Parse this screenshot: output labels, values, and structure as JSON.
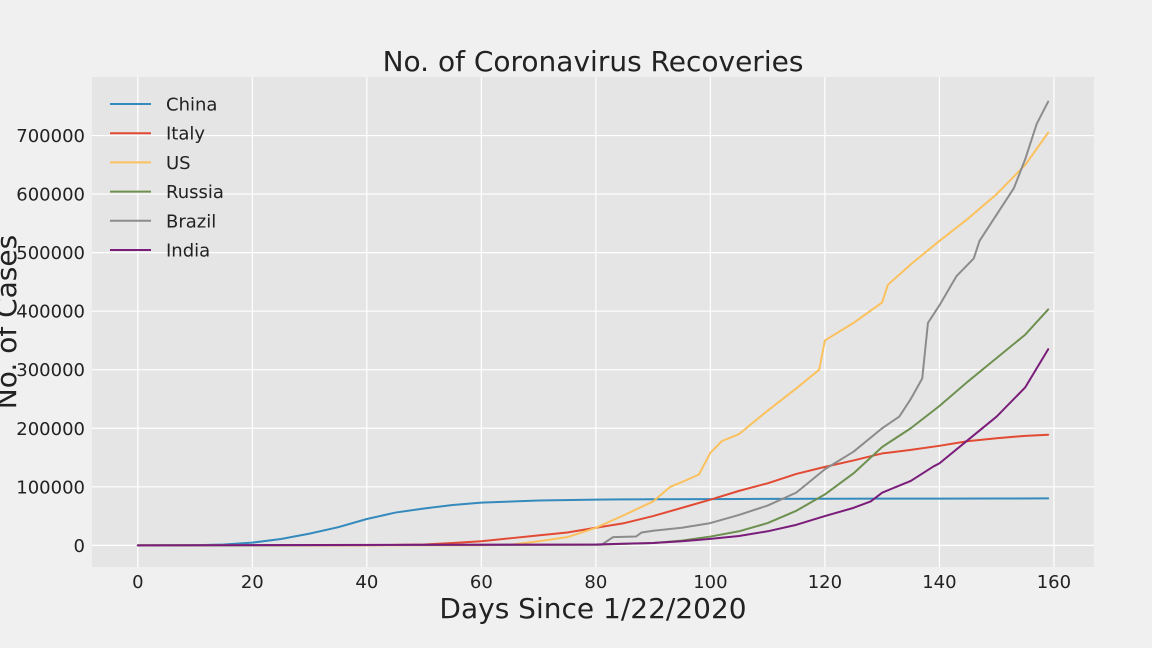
{
  "chart_data": {
    "type": "line",
    "title": "No. of Coronavirus Recoveries",
    "xlabel": "Days Since 1/22/2020",
    "ylabel": "No. of Cases",
    "xlim": [
      -8,
      167
    ],
    "ylim": [
      -37000,
      800000
    ],
    "xticks": [
      0,
      20,
      40,
      60,
      80,
      100,
      120,
      140,
      160
    ],
    "yticks": [
      0,
      100000,
      200000,
      300000,
      400000,
      500000,
      600000,
      700000
    ],
    "grid": true,
    "legend_position": "top-left",
    "series": [
      {
        "name": "China",
        "color": "#348abd",
        "points": [
          [
            0,
            28
          ],
          [
            10,
            250
          ],
          [
            15,
            1500
          ],
          [
            20,
            4600
          ],
          [
            25,
            10800
          ],
          [
            30,
            20000
          ],
          [
            35,
            31000
          ],
          [
            40,
            45000
          ],
          [
            45,
            56000
          ],
          [
            50,
            63000
          ],
          [
            55,
            69000
          ],
          [
            60,
            73000
          ],
          [
            70,
            76500
          ],
          [
            80,
            78000
          ],
          [
            85,
            78500
          ],
          [
            90,
            78700
          ],
          [
            100,
            79000
          ],
          [
            110,
            79300
          ],
          [
            120,
            79500
          ],
          [
            130,
            79700
          ],
          [
            140,
            79800
          ],
          [
            150,
            80000
          ],
          [
            159,
            80200
          ]
        ]
      },
      {
        "name": "Italy",
        "color": "#e24a33",
        "points": [
          [
            0,
            0
          ],
          [
            30,
            0
          ],
          [
            40,
            46
          ],
          [
            50,
            1500
          ],
          [
            55,
            4000
          ],
          [
            60,
            7000
          ],
          [
            65,
            12000
          ],
          [
            70,
            17000
          ],
          [
            75,
            22000
          ],
          [
            80,
            30000
          ],
          [
            85,
            38000
          ],
          [
            90,
            50000
          ],
          [
            95,
            64000
          ],
          [
            100,
            78000
          ],
          [
            105,
            93000
          ],
          [
            110,
            106000
          ],
          [
            115,
            122000
          ],
          [
            120,
            134000
          ],
          [
            125,
            145000
          ],
          [
            130,
            157000
          ],
          [
            135,
            163000
          ],
          [
            140,
            170000
          ],
          [
            145,
            178000
          ],
          [
            150,
            183000
          ],
          [
            155,
            187000
          ],
          [
            159,
            189000
          ]
        ]
      },
      {
        "name": "US",
        "color": "#fbc15e",
        "points": [
          [
            0,
            0
          ],
          [
            60,
            100
          ],
          [
            65,
            1000
          ],
          [
            70,
            7000
          ],
          [
            75,
            14000
          ],
          [
            80,
            30000
          ],
          [
            85,
            52000
          ],
          [
            90,
            75000
          ],
          [
            93,
            100000
          ],
          [
            95,
            108000
          ],
          [
            98,
            121000
          ],
          [
            100,
            158000
          ],
          [
            102,
            178000
          ],
          [
            105,
            190000
          ],
          [
            110,
            230000
          ],
          [
            115,
            268000
          ],
          [
            119,
            300000
          ],
          [
            120,
            350000
          ],
          [
            125,
            380000
          ],
          [
            130,
            415000
          ],
          [
            131,
            445000
          ],
          [
            135,
            480000
          ],
          [
            140,
            520000
          ],
          [
            145,
            558000
          ],
          [
            150,
            600000
          ],
          [
            155,
            650000
          ],
          [
            159,
            705000
          ]
        ]
      },
      {
        "name": "Russia",
        "color": "#6d904f",
        "points": [
          [
            0,
            0
          ],
          [
            80,
            1000
          ],
          [
            90,
            4000
          ],
          [
            95,
            8000
          ],
          [
            100,
            15000
          ],
          [
            105,
            24000
          ],
          [
            110,
            38000
          ],
          [
            115,
            59000
          ],
          [
            120,
            87000
          ],
          [
            125,
            123000
          ],
          [
            130,
            168000
          ],
          [
            135,
            200000
          ],
          [
            140,
            238000
          ],
          [
            145,
            280000
          ],
          [
            150,
            320000
          ],
          [
            155,
            360000
          ],
          [
            159,
            403000
          ]
        ]
      },
      {
        "name": "Brazil",
        "color": "#8c8c8c",
        "points": [
          [
            0,
            0
          ],
          [
            80,
            1000
          ],
          [
            81,
            1000
          ],
          [
            83,
            14000
          ],
          [
            87,
            15000
          ],
          [
            88,
            22000
          ],
          [
            90,
            25000
          ],
          [
            95,
            30000
          ],
          [
            100,
            38000
          ],
          [
            105,
            52000
          ],
          [
            110,
            68000
          ],
          [
            115,
            90000
          ],
          [
            120,
            130000
          ],
          [
            125,
            160000
          ],
          [
            130,
            200000
          ],
          [
            133,
            220000
          ],
          [
            135,
            250000
          ],
          [
            137,
            285000
          ],
          [
            138,
            380000
          ],
          [
            140,
            410000
          ],
          [
            143,
            460000
          ],
          [
            146,
            490000
          ],
          [
            147,
            520000
          ],
          [
            150,
            565000
          ],
          [
            153,
            610000
          ],
          [
            155,
            660000
          ],
          [
            157,
            720000
          ],
          [
            159,
            758000
          ]
        ]
      },
      {
        "name": "India",
        "color": "#7a1d7a",
        "points": [
          [
            0,
            0
          ],
          [
            80,
            1500
          ],
          [
            90,
            4000
          ],
          [
            95,
            7000
          ],
          [
            100,
            11000
          ],
          [
            105,
            16000
          ],
          [
            110,
            24000
          ],
          [
            115,
            35000
          ],
          [
            120,
            50000
          ],
          [
            125,
            64000
          ],
          [
            128,
            75000
          ],
          [
            130,
            90000
          ],
          [
            135,
            110000
          ],
          [
            139,
            135000
          ],
          [
            140,
            140000
          ],
          [
            145,
            180000
          ],
          [
            150,
            220000
          ],
          [
            155,
            270000
          ],
          [
            159,
            335000
          ]
        ]
      }
    ]
  }
}
